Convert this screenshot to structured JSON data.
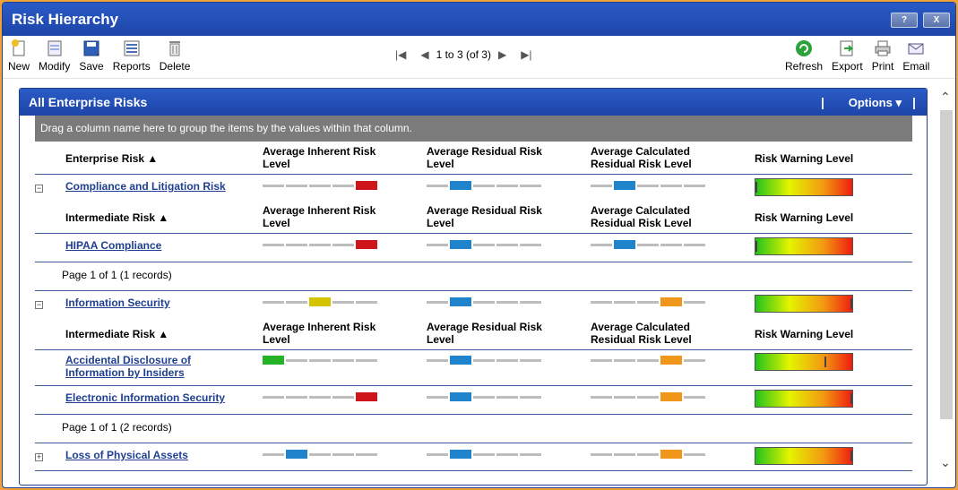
{
  "window": {
    "title": "Risk Hierarchy",
    "help_label": "?",
    "close_label": "X"
  },
  "toolbar": {
    "new": "New",
    "modify": "Modify",
    "save": "Save",
    "reports": "Reports",
    "delete": "Delete",
    "refresh": "Refresh",
    "export": "Export",
    "print": "Print",
    "email": "Email",
    "pager": "1 to 3 (of 3)"
  },
  "panel": {
    "title": "All Enterprise Risks",
    "options": "Options ▾",
    "group_hint": "Drag a column name here to group the items by the values within that column."
  },
  "headers": {
    "enterprise": "Enterprise Risk ▲",
    "intermediate": "Intermediate Risk ▲",
    "inherent_1": "Average Inherent Risk",
    "inherent_2": "Level",
    "residual_1": "Average Residual Risk",
    "residual_2": "Level",
    "calc_1": "Average Calculated",
    "calc_2": "Residual Risk Level",
    "warning": "Risk Warning Level"
  },
  "colors": {
    "red": "#d0141c",
    "blue": "#1f84cc",
    "yellow": "#d4c400",
    "orange": "#f0961a",
    "green": "#24b324"
  },
  "groups": [
    {
      "name": "Compliance and Litigation Risk",
      "expanded": true,
      "inherent": 5,
      "inherent_color": "red",
      "residual": 2,
      "residual_color": "blue",
      "calc": 2,
      "calc_color": "blue",
      "warning": 0.0,
      "page_info": "Page 1 of 1 (1 records)",
      "children": [
        {
          "name": "HIPAA Compliance",
          "inherent": 5,
          "inherent_color": "red",
          "residual": 2,
          "residual_color": "blue",
          "calc": 2,
          "calc_color": "blue",
          "warning": 0.0
        }
      ]
    },
    {
      "name": "Information Security",
      "expanded": true,
      "inherent": 3,
      "inherent_color": "yellow",
      "residual": 2,
      "residual_color": "blue",
      "calc": 4,
      "calc_color": "orange",
      "warning": 1.0,
      "page_info": "Page 1 of 1 (2 records)",
      "children": [
        {
          "name_1": "Accidental Disclosure of",
          "name_2": "Information by Insiders",
          "inherent": 1,
          "inherent_color": "green",
          "residual": 2,
          "residual_color": "blue",
          "calc": 4,
          "calc_color": "orange",
          "warning": 0.73
        },
        {
          "name": "Electronic Information Security",
          "inherent": 5,
          "inherent_color": "red",
          "residual": 2,
          "residual_color": "blue",
          "calc": 4,
          "calc_color": "orange",
          "warning": 1.0
        }
      ]
    },
    {
      "name": "Loss of Physical Assets",
      "expanded": false,
      "inherent": 2,
      "inherent_color": "blue",
      "residual": 2,
      "residual_color": "blue",
      "calc": 4,
      "calc_color": "orange",
      "warning": 1.0
    }
  ]
}
